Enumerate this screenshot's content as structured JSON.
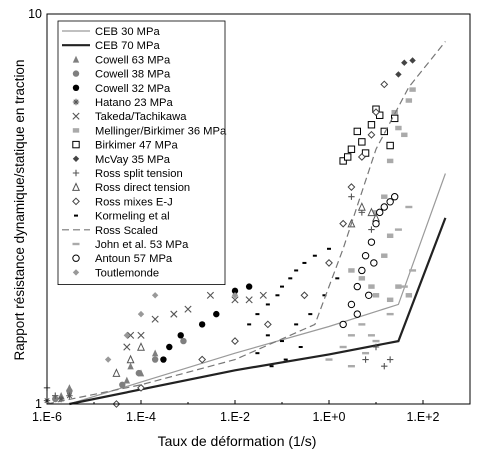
{
  "chart_data": {
    "type": "scatter",
    "title": "",
    "xlabel": "Taux de déformation (1/s)",
    "ylabel": "Rapport résistance dynamique/statique en traction",
    "x_scale": "log",
    "y_scale": "log",
    "xlim": [
      1e-06,
      1000
    ],
    "ylim": [
      1,
      10
    ],
    "x_ticks": [
      {
        "value": 1e-06,
        "label": "1.E-6"
      },
      {
        "value": 0.0001,
        "label": "1.E-4"
      },
      {
        "value": 0.01,
        "label": "1.E-2"
      },
      {
        "value": 1,
        "label": "1.E+0"
      },
      {
        "value": 100,
        "label": "1.E+2"
      }
    ],
    "y_ticks": [
      {
        "value": 1,
        "label": "1"
      },
      {
        "value": 10,
        "label": "10"
      }
    ],
    "grid": false,
    "legend_position": "top-left",
    "series": [
      {
        "name": "CEB 30 MPa",
        "marker": "line",
        "color": "#9a9a9a",
        "points": [
          [
            3e-06,
            1.0
          ],
          [
            0.01,
            1.35
          ],
          [
            1,
            1.58
          ],
          [
            30,
            1.8
          ],
          [
            300,
            3.9
          ]
        ]
      },
      {
        "name": "CEB 70 MPa",
        "marker": "line-bold",
        "color": "#222222",
        "points": [
          [
            3e-06,
            1.0
          ],
          [
            0.01,
            1.22
          ],
          [
            1,
            1.34
          ],
          [
            30,
            1.45
          ],
          [
            300,
            3.0
          ]
        ]
      },
      {
        "name": "Cowell 63 MPa",
        "marker": "triangle",
        "color": "#7f7f7f",
        "points": [
          [
            2e-06,
            1.05
          ],
          [
            3e-06,
            1.1
          ],
          [
            5e-05,
            1.15
          ],
          [
            6e-05,
            1.25
          ],
          [
            0.0001,
            1.2
          ],
          [
            0.0002,
            1.35
          ]
        ]
      },
      {
        "name": "Cowell 38 MPa",
        "marker": "circle",
        "color": "#7f7f7f",
        "points": [
          [
            1.5e-06,
            1.03
          ],
          [
            3e-06,
            1.08
          ],
          [
            4e-05,
            1.12
          ],
          [
            9e-05,
            1.2
          ],
          [
            0.0002,
            1.3
          ],
          [
            0.0008,
            1.45
          ]
        ]
      },
      {
        "name": "Cowell 32 MPa",
        "marker": "circle",
        "color": "#000000",
        "points": [
          [
            0.0003,
            1.3
          ],
          [
            0.0004,
            1.4
          ],
          [
            0.0007,
            1.5
          ],
          [
            0.002,
            1.6
          ],
          [
            0.004,
            1.7
          ],
          [
            0.01,
            1.95
          ],
          [
            0.02,
            2.0
          ]
        ]
      },
      {
        "name": "Hatano 23 MPa",
        "marker": "asterisk",
        "color": "#555555",
        "points": [
          [
            1e-06,
            1.02
          ],
          [
            2e-06,
            1.03
          ],
          [
            3e-06,
            1.05
          ]
        ]
      },
      {
        "name": "Takeda/Tachikawa",
        "marker": "x",
        "color": "#555555",
        "points": [
          [
            6e-05,
            1.5
          ],
          [
            0.0002,
            1.65
          ],
          [
            0.0005,
            1.7
          ],
          [
            0.001,
            1.75
          ],
          [
            0.003,
            1.9
          ],
          [
            0.01,
            1.85
          ],
          [
            0.02,
            1.85
          ],
          [
            0.04,
            1.9
          ],
          [
            5e-05,
            1.4
          ],
          [
            0.0001,
            1.5
          ]
        ]
      },
      {
        "name": "Mellinger/Birkimer 36 MPa",
        "marker": "square",
        "color": "#aaaaaa",
        "points": [
          [
            3,
            2.2
          ],
          [
            5,
            2.1
          ],
          [
            8,
            2.0
          ],
          [
            10,
            1.9
          ],
          [
            20,
            1.85
          ],
          [
            30,
            2.0
          ],
          [
            50,
            1.9
          ],
          [
            8,
            2.6
          ],
          [
            10,
            3.1
          ],
          [
            15,
            3.4
          ],
          [
            20,
            4.2
          ],
          [
            30,
            5.1
          ],
          [
            40,
            4.9
          ],
          [
            15,
            2.4
          ],
          [
            20,
            2.7
          ],
          [
            50,
            6.0
          ],
          [
            25,
            5.6
          ],
          [
            60,
            6.4
          ]
        ]
      },
      {
        "name": "Birkimer 47 MPa",
        "marker": "square-open",
        "color": "#000000",
        "points": [
          [
            2,
            4.2
          ],
          [
            2.5,
            4.3
          ],
          [
            3,
            4.5
          ],
          [
            4,
            5.0
          ],
          [
            5,
            4.7
          ],
          [
            6,
            4.4
          ],
          [
            8,
            5.2
          ],
          [
            10,
            5.7
          ],
          [
            12,
            5.5
          ],
          [
            15,
            5.0
          ],
          [
            20,
            4.6
          ],
          [
            25,
            5.4
          ]
        ]
      },
      {
        "name": "McVay 35 MPa",
        "marker": "diamond",
        "color": "#444444",
        "points": [
          [
            30,
            7.0
          ],
          [
            40,
            7.5
          ],
          [
            60,
            7.6
          ]
        ]
      },
      {
        "name": "Ross split tension",
        "marker": "plus",
        "color": "#555555",
        "points": [
          [
            1e-06,
            1.1
          ],
          [
            1.5e-06,
            1.05
          ],
          [
            3,
            3.4
          ],
          [
            5,
            3.1
          ],
          [
            8,
            2.8
          ],
          [
            10,
            1.4
          ],
          [
            15,
            1.25
          ],
          [
            20,
            1.3
          ],
          [
            6,
            1.3
          ]
        ]
      },
      {
        "name": "Ross direct tension",
        "marker": "triangle-open",
        "color": "#555555",
        "points": [
          [
            3e-05,
            1.2
          ],
          [
            6e-05,
            1.3
          ],
          [
            0.0001,
            1.4
          ],
          [
            3,
            2.9
          ],
          [
            5,
            3.2
          ],
          [
            8,
            3.1
          ],
          [
            10,
            3.0
          ]
        ]
      },
      {
        "name": "Ross mixes E-J",
        "marker": "diamond-open",
        "color": "#444444",
        "points": [
          [
            3e-05,
            1.0
          ],
          [
            0.0001,
            1.1
          ],
          [
            0.002,
            1.3
          ],
          [
            0.01,
            1.45
          ],
          [
            0.05,
            1.6
          ],
          [
            0.3,
            1.9
          ],
          [
            1,
            2.3
          ],
          [
            2,
            2.9
          ],
          [
            3,
            3.6
          ],
          [
            5,
            4.3
          ],
          [
            8,
            4.9
          ],
          [
            10,
            5.6
          ],
          [
            15,
            6.6
          ]
        ]
      },
      {
        "name": "Kormeling et al",
        "marker": "dash-black",
        "color": "#000000",
        "points": [
          [
            0.02,
            1.6
          ],
          [
            0.03,
            1.7
          ],
          [
            0.05,
            1.8
          ],
          [
            0.08,
            1.9
          ],
          [
            0.1,
            2.0
          ],
          [
            0.15,
            2.1
          ],
          [
            0.2,
            2.2
          ],
          [
            0.3,
            2.3
          ],
          [
            0.5,
            2.4
          ],
          [
            1,
            2.5
          ],
          [
            0.05,
            1.5
          ],
          [
            0.1,
            1.45
          ],
          [
            0.2,
            1.6
          ],
          [
            0.4,
            1.7
          ],
          [
            0.8,
            1.9
          ],
          [
            1.5,
            2.1
          ],
          [
            0.03,
            1.35
          ],
          [
            0.06,
            1.25
          ],
          [
            0.12,
            1.3
          ],
          [
            0.25,
            1.4
          ]
        ]
      },
      {
        "name": "Ross Scaled",
        "marker": "dashed-line",
        "color": "#777777",
        "points": [
          [
            1e-06,
            1.0
          ],
          [
            0.0001,
            1.12
          ],
          [
            0.01,
            1.3
          ],
          [
            0.5,
            1.6
          ],
          [
            2,
            2.5
          ],
          [
            10,
            4.5
          ],
          [
            50,
            6.5
          ],
          [
            300,
            8.5
          ]
        ]
      },
      {
        "name": "John et al. 53 MPa",
        "marker": "dash-gray",
        "color": "#aaaaaa",
        "points": [
          [
            1,
            1.3
          ],
          [
            2,
            1.4
          ],
          [
            3,
            1.5
          ],
          [
            5,
            1.6
          ],
          [
            8,
            1.5
          ],
          [
            10,
            1.45
          ],
          [
            3,
            1.25
          ],
          [
            6,
            1.35
          ],
          [
            20,
            1.7
          ],
          [
            40,
            2.0
          ],
          [
            60,
            2.2
          ],
          [
            30,
            2.8
          ],
          [
            50,
            3.2
          ]
        ]
      },
      {
        "name": "Antoun 57 MPa",
        "marker": "circle-open",
        "color": "#000000",
        "points": [
          [
            2,
            1.6
          ],
          [
            3,
            1.8
          ],
          [
            4,
            2.0
          ],
          [
            5,
            2.2
          ],
          [
            6,
            2.4
          ],
          [
            8,
            2.6
          ],
          [
            10,
            2.9
          ],
          [
            12,
            3.1
          ],
          [
            15,
            3.2
          ],
          [
            20,
            3.3
          ],
          [
            25,
            3.4
          ],
          [
            4,
            1.7
          ],
          [
            7,
            1.9
          ],
          [
            9,
            2.3
          ]
        ]
      },
      {
        "name": "Toutlemonde",
        "marker": "diamond",
        "color": "#999999",
        "points": [
          [
            2e-05,
            1.3
          ],
          [
            5e-05,
            1.5
          ],
          [
            0.0001,
            1.7
          ],
          [
            0.0002,
            1.9
          ],
          [
            0.0006,
            2.1
          ],
          [
            0.002,
            2.2
          ],
          [
            0.003,
            2.5
          ],
          [
            0.01,
            1.9
          ]
        ]
      }
    ]
  }
}
